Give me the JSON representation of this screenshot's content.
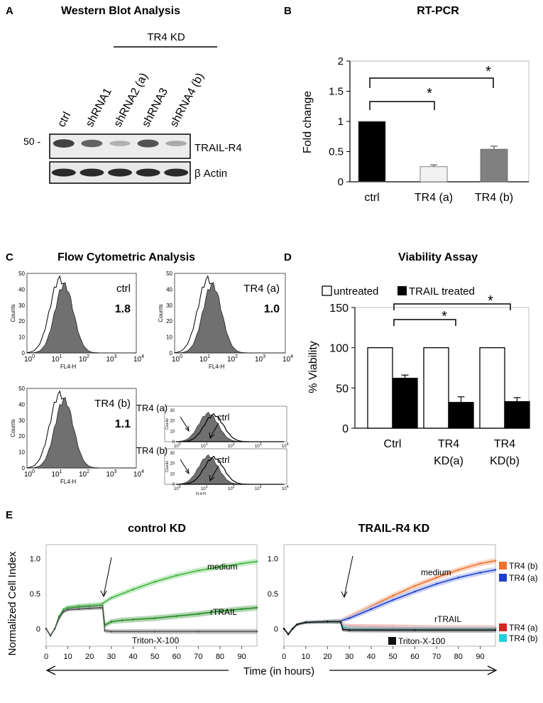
{
  "panel_labels": [
    "A",
    "B",
    "C",
    "D",
    "E"
  ],
  "western": {
    "title": "Western Blot Analysis",
    "group_label": "TR4 KD",
    "lanes": [
      "ctrl",
      "shRNA1",
      "shRNA2 (a)",
      "shRNA3",
      "shRNA4 (b)"
    ],
    "band_intensity": [
      0.95,
      0.75,
      0.25,
      0.85,
      0.3
    ],
    "marker": "50 -",
    "band1_label": "TRAIL-R4",
    "band2_label": "β  Actin"
  },
  "flow": {
    "title": "Flow Cytometric Analysis",
    "axis_y": "Counts",
    "axis_x": "FL4-H",
    "y_ticks": [
      "0",
      "10",
      "20",
      "30",
      "40",
      "50"
    ],
    "x_ticks": [
      {
        "base": "10",
        "exp": "0"
      },
      {
        "base": "10",
        "exp": "1"
      },
      {
        "base": "10",
        "exp": "2"
      },
      {
        "base": "10",
        "exp": "3"
      },
      {
        "base": "10",
        "exp": "4"
      }
    ],
    "histograms": [
      {
        "name": "ctrl",
        "value": "1.8"
      },
      {
        "name": "TR4 (a)",
        "value": "1.0"
      },
      {
        "name": "TR4 (b)",
        "value": "1.1"
      }
    ],
    "overlays": [
      {
        "label": "TR4 (a)",
        "ctrl_label": "ctrl"
      },
      {
        "label": "TR4 (b)",
        "ctrl_label": "ctrl"
      }
    ],
    "overlay_y_ticks": [
      "0",
      "10",
      "20",
      "30"
    ]
  },
  "chart_data": [
    {
      "type": "bar",
      "title": "RT-PCR",
      "ylabel": "Fold change",
      "xlabel": "",
      "categories": [
        "ctrl",
        "TR4 (a)",
        "TR4 (b)"
      ],
      "values": [
        1.0,
        0.25,
        0.54
      ],
      "errors": [
        0,
        0.03,
        0.05
      ],
      "colors": [
        "#000000",
        "#f2f2f2",
        "#808080"
      ],
      "ylim": [
        0,
        2
      ],
      "yticks": [
        "0",
        "0.5",
        "1",
        "1.5",
        "2"
      ],
      "significance": [
        "*",
        "*"
      ]
    },
    {
      "type": "bar",
      "title": "Viability Assay",
      "ylabel": "% Viability",
      "categories": [
        [
          "Ctrl"
        ],
        [
          "TR4",
          "KD(a)"
        ],
        [
          "TR4",
          "KD(b)"
        ]
      ],
      "series": [
        {
          "name": "untreated",
          "values": [
            100,
            100,
            100
          ],
          "errors": [
            0,
            0,
            0
          ],
          "color": "#ffffff"
        },
        {
          "name": "TRAIL treated",
          "values": [
            62,
            32,
            33
          ],
          "errors": [
            4,
            7,
            5
          ],
          "color": "#000000"
        }
      ],
      "ylim": [
        0,
        150
      ],
      "yticks": [
        "0",
        "50",
        "100",
        "150"
      ],
      "significance": [
        "*",
        "*"
      ]
    },
    {
      "type": "line",
      "title": "control KD",
      "ylabel": "Normalized Cell Index",
      "xlabel": "Time (in hours)",
      "xlim": [
        0,
        97
      ],
      "ylim": [
        -0.25,
        1.2
      ],
      "xticks": [
        "0",
        "10",
        "20",
        "30",
        "40",
        "50",
        "60",
        "70",
        "80",
        "90"
      ],
      "yticks": [
        "0",
        "0.5",
        "1.0"
      ],
      "series": [
        {
          "name": "medium",
          "color": "#3cb43c",
          "band": "#b8e6b8",
          "points": [
            [
              0,
              0
            ],
            [
              2,
              -0.1
            ],
            [
              4,
              0
            ],
            [
              6,
              0.18
            ],
            [
              8,
              0.28
            ],
            [
              10,
              0.31
            ],
            [
              15,
              0.33
            ],
            [
              20,
              0.34
            ],
            [
              25,
              0.35
            ],
            [
              26,
              0.36
            ],
            [
              30,
              0.44
            ],
            [
              40,
              0.56
            ],
            [
              50,
              0.67
            ],
            [
              60,
              0.76
            ],
            [
              70,
              0.83
            ],
            [
              80,
              0.88
            ],
            [
              90,
              0.93
            ],
            [
              97,
              0.96
            ]
          ]
        },
        {
          "name": "rTRAIL",
          "color": "#228b22",
          "band": "#98c898",
          "points": [
            [
              0,
              0
            ],
            [
              2,
              -0.1
            ],
            [
              4,
              0
            ],
            [
              6,
              0.17
            ],
            [
              8,
              0.26
            ],
            [
              10,
              0.29
            ],
            [
              15,
              0.31
            ],
            [
              20,
              0.32
            ],
            [
              25,
              0.33
            ],
            [
              26,
              0.33
            ],
            [
              27,
              0.05
            ],
            [
              30,
              0.1
            ],
            [
              35,
              0.12
            ],
            [
              40,
              0.13
            ],
            [
              50,
              0.15
            ],
            [
              60,
              0.18
            ],
            [
              70,
              0.21
            ],
            [
              80,
              0.25
            ],
            [
              90,
              0.28
            ],
            [
              97,
              0.3
            ]
          ]
        },
        {
          "name": "Triton-X-100",
          "color": "#555555",
          "band": "#b0b0b0",
          "points": [
            [
              0,
              0
            ],
            [
              2,
              -0.1
            ],
            [
              4,
              0
            ],
            [
              6,
              0.15
            ],
            [
              8,
              0.24
            ],
            [
              10,
              0.27
            ],
            [
              15,
              0.28
            ],
            [
              20,
              0.29
            ],
            [
              25,
              0.3
            ],
            [
              26,
              0.3
            ],
            [
              27,
              -0.03
            ],
            [
              30,
              -0.04
            ],
            [
              50,
              -0.04
            ],
            [
              70,
              -0.04
            ],
            [
              97,
              -0.04
            ]
          ]
        }
      ]
    },
    {
      "type": "line",
      "title": "TRAIL-R4 KD",
      "xlim": [
        0,
        97
      ],
      "ylim": [
        -0.25,
        1.2
      ],
      "xticks": [
        "0",
        "10",
        "20",
        "30",
        "40",
        "50",
        "60",
        "70",
        "80",
        "90"
      ],
      "series": [
        {
          "name": "TR4 (b)",
          "line_label": "medium",
          "color": "#f07030",
          "band": "#f8c8b0",
          "points": [
            [
              0,
              0
            ],
            [
              2,
              -0.08
            ],
            [
              4,
              0
            ],
            [
              6,
              0.06
            ],
            [
              10,
              0.09
            ],
            [
              20,
              0.1
            ],
            [
              26,
              0.11
            ],
            [
              30,
              0.17
            ],
            [
              40,
              0.32
            ],
            [
              50,
              0.47
            ],
            [
              60,
              0.61
            ],
            [
              70,
              0.73
            ],
            [
              80,
              0.84
            ],
            [
              90,
              0.93
            ],
            [
              97,
              0.97
            ]
          ]
        },
        {
          "name": "TR4 (a)",
          "line_label": "medium",
          "color": "#1f3fd0",
          "band": "#b8c4f0",
          "points": [
            [
              0,
              0
            ],
            [
              2,
              -0.08
            ],
            [
              4,
              0
            ],
            [
              6,
              0.06
            ],
            [
              10,
              0.09
            ],
            [
              20,
              0.1
            ],
            [
              26,
              0.11
            ],
            [
              30,
              0.15
            ],
            [
              40,
              0.28
            ],
            [
              50,
              0.41
            ],
            [
              60,
              0.53
            ],
            [
              70,
              0.64
            ],
            [
              80,
              0.73
            ],
            [
              90,
              0.8
            ],
            [
              97,
              0.84
            ]
          ]
        },
        {
          "name": "TR4 (a)",
          "line_label": "rTRAIL",
          "color": "#e02020",
          "band": "#f0b0b0",
          "points": [
            [
              0,
              0
            ],
            [
              2,
              -0.08
            ],
            [
              4,
              0
            ],
            [
              6,
              0.06
            ],
            [
              10,
              0.09
            ],
            [
              20,
              0.1
            ],
            [
              26,
              0.1
            ],
            [
              27,
              0.05
            ],
            [
              30,
              0.03
            ],
            [
              50,
              0.02
            ],
            [
              70,
              0.01
            ],
            [
              97,
              0.01
            ]
          ]
        },
        {
          "name": "TR4 (b)",
          "line_label": "rTRAIL",
          "color": "#20d0d8",
          "band": "#b0ecf0",
          "points": [
            [
              0,
              0
            ],
            [
              2,
              -0.08
            ],
            [
              4,
              0
            ],
            [
              6,
              0.06
            ],
            [
              10,
              0.09
            ],
            [
              20,
              0.1
            ],
            [
              26,
              0.1
            ],
            [
              27,
              0.03
            ],
            [
              30,
              0.0
            ],
            [
              50,
              -0.01
            ],
            [
              70,
              -0.01
            ],
            [
              97,
              -0.01
            ]
          ]
        },
        {
          "name": "Triton-X-100",
          "color": "#111111",
          "band": "#888888",
          "points": [
            [
              0,
              0
            ],
            [
              2,
              -0.08
            ],
            [
              4,
              0
            ],
            [
              6,
              0.06
            ],
            [
              10,
              0.09
            ],
            [
              20,
              0.1
            ],
            [
              26,
              0.1
            ],
            [
              27,
              -0.01
            ],
            [
              30,
              -0.02
            ],
            [
              60,
              -0.02
            ],
            [
              97,
              -0.02
            ]
          ]
        }
      ]
    }
  ]
}
